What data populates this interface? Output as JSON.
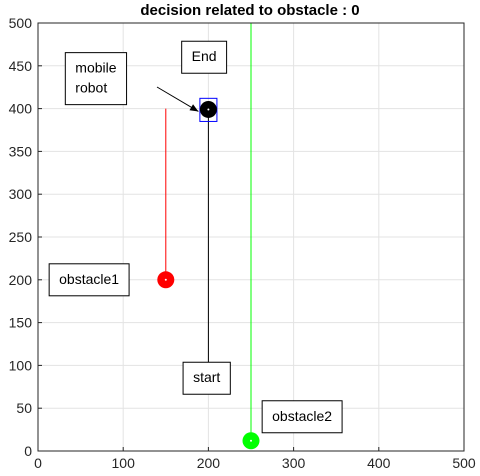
{
  "chart_data": {
    "type": "scatter",
    "title": "decision related to obstacle  : 0",
    "xlabel": "",
    "ylabel": "",
    "xlim": [
      0,
      500
    ],
    "ylim": [
      0,
      500
    ],
    "xticks": [
      "0",
      "100",
      "200",
      "300",
      "400",
      "500"
    ],
    "yticks": [
      "0",
      "50",
      "100",
      "150",
      "200",
      "250",
      "300",
      "350",
      "400",
      "450",
      "500"
    ],
    "grid": true,
    "lines": [
      {
        "id": "robot-path",
        "color": "#000000",
        "x": [
          200,
          200
        ],
        "y": [
          100,
          400
        ]
      },
      {
        "id": "obstacle1-path",
        "color": "#ff0000",
        "x": [
          150,
          150
        ],
        "y": [
          200,
          400
        ]
      },
      {
        "id": "obstacle2-path",
        "color": "#00ff00",
        "x": [
          250,
          250
        ],
        "y": [
          12,
          500
        ]
      }
    ],
    "points": [
      {
        "id": "robot",
        "x": 200,
        "y": 399,
        "color": "#000000"
      },
      {
        "id": "obstacle1",
        "x": 150,
        "y": 200,
        "color": "#ff0000"
      },
      {
        "id": "obstacle2",
        "x": 250,
        "y": 12,
        "color": "#00ff00"
      }
    ],
    "target_box": {
      "x": [
        190,
        210
      ],
      "y": [
        385,
        412
      ],
      "color": "#0000ff"
    },
    "annotations": [
      {
        "id": "mobile-robot",
        "lines": [
          "mobile",
          "robot"
        ],
        "x": 68,
        "y": 435
      },
      {
        "id": "end",
        "lines": [
          "End"
        ],
        "x": 195,
        "y": 460
      },
      {
        "id": "obstacle1",
        "lines": [
          "obstacle1"
        ],
        "x": 60,
        "y": 200
      },
      {
        "id": "start",
        "lines": [
          "start"
        ],
        "x": 198,
        "y": 85
      },
      {
        "id": "obstacle2",
        "lines": [
          "obstacle2"
        ],
        "x": 310,
        "y": 40
      }
    ]
  }
}
